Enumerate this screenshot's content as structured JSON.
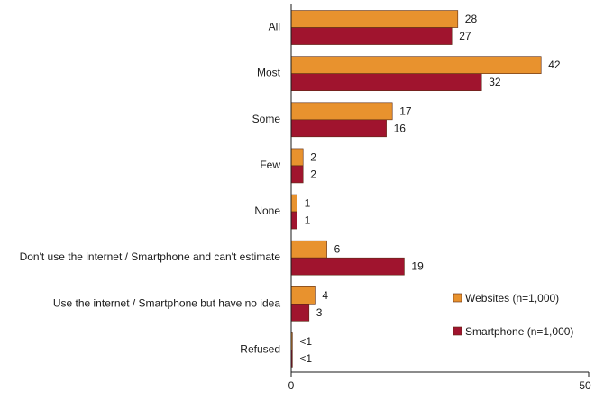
{
  "chart_data": {
    "type": "bar",
    "orientation": "horizontal",
    "categories": [
      "All",
      "Most",
      "Some",
      "Few",
      "None",
      "Don't use the internet / Smartphone and can't estimate",
      "Use the internet / Smartphone but have no idea",
      "Refused"
    ],
    "series": [
      {
        "name": "Websites (n=1,000)",
        "color": "#E8922E",
        "values": [
          28,
          42,
          17,
          2,
          1,
          6,
          4,
          0.2
        ],
        "labels": [
          "28",
          "42",
          "17",
          "2",
          "1",
          "6",
          "4",
          "<1"
        ]
      },
      {
        "name": "Smartphone (n=1,000)",
        "color": "#A0142E",
        "values": [
          27,
          32,
          16,
          2,
          1,
          19,
          3,
          0.2
        ],
        "labels": [
          "27",
          "32",
          "16",
          "2",
          "1",
          "19",
          "3",
          "<1"
        ]
      }
    ],
    "xlim": [
      0,
      50
    ],
    "xticks": [
      "0",
      "50"
    ],
    "legend_position": "bottom-right",
    "grid": false
  }
}
